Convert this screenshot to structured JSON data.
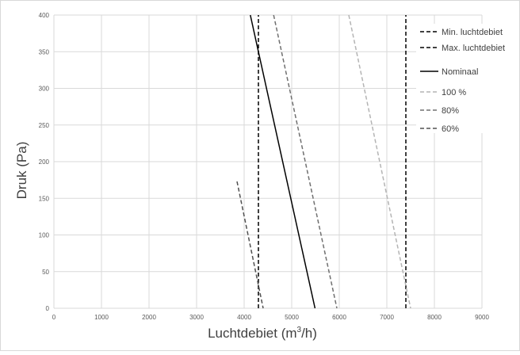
{
  "chart_data": {
    "type": "line",
    "xlabel": "Luchtdebiet (m³/h)",
    "xlabel_main": "Luchtdebiet (m",
    "xlabel_sup": "3",
    "xlabel_end": "/h)",
    "ylabel": "Druk (Pa)",
    "xlim": [
      0,
      9000
    ],
    "ylim": [
      0,
      400
    ],
    "x_ticks": [
      "0",
      "1000",
      "2000",
      "3000",
      "4000",
      "5000",
      "6000",
      "7000",
      "8000",
      "9000"
    ],
    "y_ticks": [
      "0",
      "50",
      "100",
      "150",
      "200",
      "250",
      "300",
      "350",
      "400"
    ],
    "grid": true,
    "legend_position": "top-right",
    "series": [
      {
        "name": "Min. luchtdebiet",
        "color": "#000000",
        "style": "dashed",
        "points": [
          [
            4300,
            0
          ],
          [
            4300,
            400
          ]
        ]
      },
      {
        "name": "Max. luchtdebiet",
        "color": "#000000",
        "style": "dashed",
        "points": [
          [
            7400,
            0
          ],
          [
            7400,
            400
          ]
        ]
      },
      {
        "name": "Nominaal",
        "color": "#000000",
        "style": "solid",
        "points": [
          [
            4130,
            400
          ],
          [
            5490,
            0
          ]
        ]
      },
      {
        "name": "100 %",
        "color": "#b4b4b4",
        "style": "dashed",
        "points": [
          [
            6200,
            400
          ],
          [
            7500,
            0
          ]
        ]
      },
      {
        "name": "80%",
        "color": "#707070",
        "style": "dashed",
        "points": [
          [
            4620,
            400
          ],
          [
            5950,
            0
          ]
        ]
      },
      {
        "name": "60%",
        "color": "#505050",
        "style": "dashed",
        "points": [
          [
            3850,
            173
          ],
          [
            4400,
            0
          ]
        ]
      }
    ]
  }
}
